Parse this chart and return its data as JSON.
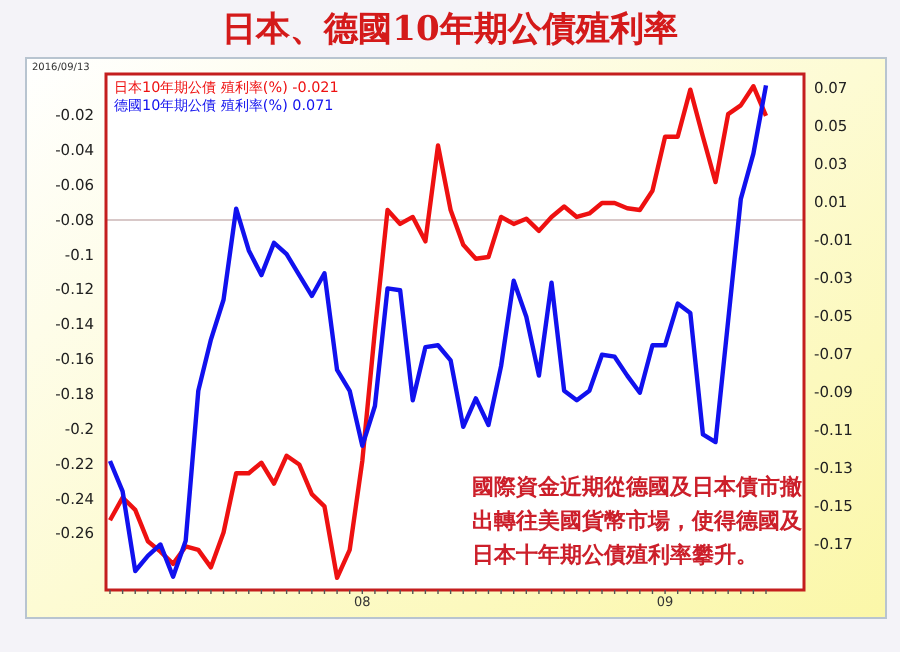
{
  "chart_data": {
    "type": "line",
    "title": "日本、德國10年期公債殖利率",
    "categories": [
      null,
      null,
      null,
      null,
      null,
      null,
      null,
      null,
      null,
      null,
      null,
      null,
      null,
      null,
      null,
      null,
      null,
      null,
      null,
      null,
      "08",
      null,
      null,
      null,
      null,
      null,
      null,
      null,
      null,
      null,
      null,
      null,
      null,
      null,
      null,
      null,
      null,
      null,
      null,
      null,
      null,
      null,
      null,
      null,
      "09",
      null,
      null,
      null,
      null,
      null,
      null,
      null,
      null
    ],
    "series": [
      {
        "name": "日本10年期公債 殖利率(%) -0.021",
        "color": "#ee1111",
        "axis": "y",
        "values": [
          -0.253,
          -0.24,
          -0.247,
          -0.265,
          -0.271,
          -0.278,
          -0.268,
          -0.27,
          -0.28,
          -0.26,
          -0.226,
          -0.226,
          -0.22,
          -0.232,
          -0.216,
          -0.221,
          -0.238,
          -0.245,
          -0.286,
          -0.27,
          -0.219,
          -0.144,
          -0.075,
          -0.083,
          -0.079,
          -0.093,
          -0.038,
          -0.075,
          -0.095,
          -0.103,
          -0.102,
          -0.079,
          -0.083,
          -0.08,
          -0.087,
          -0.079,
          -0.073,
          -0.079,
          -0.077,
          -0.071,
          -0.071,
          -0.074,
          -0.075,
          -0.064,
          -0.033,
          -0.033,
          -0.006,
          -0.033,
          -0.059,
          -0.02,
          -0.015,
          -0.004,
          -0.021
        ]
      },
      {
        "name": "德國10年期公債 殖利率(%) 0.071",
        "color": "#1111ee",
        "axis": "y2",
        "values": [
          -0.127,
          -0.143,
          -0.185,
          -0.177,
          -0.171,
          -0.188,
          -0.169,
          -0.09,
          -0.063,
          -0.042,
          0.006,
          -0.016,
          -0.029,
          -0.012,
          -0.018,
          -0.029,
          -0.04,
          -0.028,
          -0.079,
          -0.09,
          -0.119,
          -0.098,
          -0.036,
          -0.037,
          -0.095,
          -0.067,
          -0.066,
          -0.074,
          -0.109,
          -0.094,
          -0.108,
          -0.077,
          -0.032,
          -0.051,
          -0.082,
          -0.033,
          -0.09,
          -0.095,
          -0.09,
          -0.071,
          -0.072,
          -0.082,
          -0.091,
          -0.066,
          -0.066,
          -0.044,
          -0.049,
          -0.113,
          -0.117,
          -0.053,
          0.011,
          0.035,
          0.071
        ]
      }
    ],
    "ylim": [
      -0.293,
      0.003
    ],
    "yticks": [
      -0.02,
      -0.04,
      -0.06,
      -0.08,
      -0.1,
      -0.12,
      -0.14,
      -0.16,
      -0.18,
      -0.2,
      -0.22,
      -0.24,
      -0.26
    ],
    "y2lim": [
      -0.195,
      0.077
    ],
    "y2ticks": [
      0.07,
      0.05,
      0.03,
      0.01,
      -0.01,
      -0.03,
      -0.05,
      -0.07,
      -0.09,
      -0.11,
      -0.13,
      -0.15,
      -0.17
    ],
    "ref_lines": [
      {
        "axis": "y2",
        "value": 0,
        "color": "#d8c8c8"
      }
    ],
    "legend": "top left",
    "annotations": [
      "2016/09/13",
      "國際資金近期從德國及日本債市撤出轉往美國貨幣市場，使得德國及日本十年期公債殖利率攀升。"
    ]
  }
}
